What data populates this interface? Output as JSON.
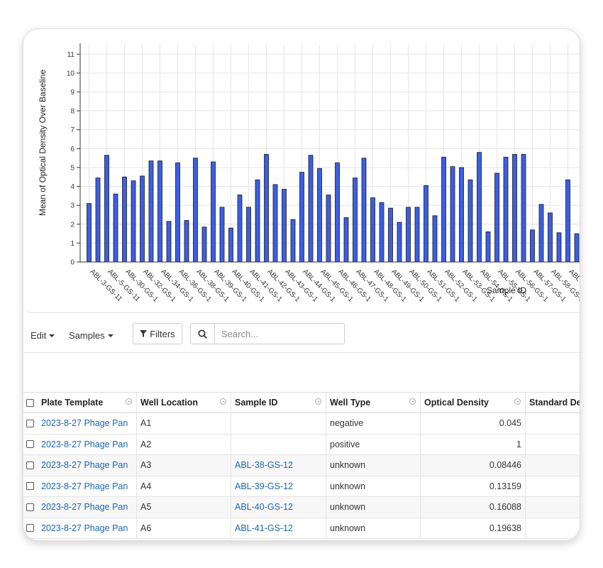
{
  "chart_data": {
    "type": "bar",
    "ylabel": "Mean of Optical Density Over Baseline",
    "xlabel": "Sample ID",
    "ylim": [
      0,
      11.5
    ],
    "yticks": [
      "0",
      "1",
      "2",
      "3",
      "4",
      "5",
      "6",
      "7",
      "8",
      "9",
      "10",
      "11"
    ],
    "grid": true,
    "bar_color": "#3b5ee8",
    "tick_labels": [
      "ABL-3-GS-11",
      "ABL-5-GS-11",
      "ABL-30-GS-1",
      "ABL-32-GS-1",
      "ABL-34-GS-1",
      "ABL-36-GS-1",
      "ABL-38-GS-1",
      "ABL-39-GS-1",
      "ABL-40-GS-1",
      "ABL-41-GS-1",
      "ABL-42-GS-1",
      "ABL-43-GS-1",
      "ABL-44-GS-1",
      "ABL-45-GS-1",
      "ABL-46-GS-1",
      "ABL-47-GS-1",
      "ABL-48-GS-1",
      "ABL-49-GS-1",
      "ABL-50-GS-1",
      "ABL-51-GS-1",
      "ABL-52-GS-1",
      "ABL-53-GS-1",
      "ABL-54-GS-1",
      "ABL-55-GS-1",
      "ABL-56-GS-1",
      "ABL-57-GS-1",
      "ABL-58-GS-1",
      "ABL-"
    ],
    "values": [
      3.1,
      4.45,
      5.65,
      3.6,
      4.5,
      4.3,
      4.55,
      5.35,
      5.35,
      2.15,
      5.25,
      2.2,
      5.5,
      1.85,
      5.3,
      2.9,
      1.8,
      3.55,
      2.9,
      4.35,
      5.7,
      4.1,
      3.85,
      2.25,
      4.75,
      5.65,
      4.95,
      3.55,
      5.25,
      2.35,
      4.45,
      5.5,
      3.4,
      3.15,
      2.85,
      2.1,
      2.9,
      2.9,
      4.05,
      2.45,
      5.55,
      5.05,
      5.0,
      4.35,
      5.8,
      1.6,
      4.7,
      5.55,
      5.7,
      5.7,
      1.7,
      3.05,
      2.6,
      1.55,
      4.35,
      1.5
    ]
  },
  "toolbar": {
    "edit_label": "Edit",
    "samples_label": "Samples",
    "filters_label": "Filters",
    "search_placeholder": "Search..."
  },
  "table": {
    "headers": {
      "plate_template": "Plate Template",
      "well_location": "Well Location",
      "sample_id": "Sample ID",
      "well_type": "Well Type",
      "optical_density": "Optical Density",
      "standard_dev": "Standard Dev"
    },
    "rows": [
      {
        "plate_template": "2023-8-27 Phage Pan",
        "well_location": "A1",
        "sample_id": "",
        "well_type": "negative",
        "optical_density": "0.045",
        "standard_dev": ""
      },
      {
        "plate_template": "2023-8-27 Phage Pan",
        "well_location": "A2",
        "sample_id": "",
        "well_type": "positive",
        "optical_density": "1",
        "standard_dev": ""
      },
      {
        "plate_template": "2023-8-27 Phage Pan",
        "well_location": "A3",
        "sample_id": "ABL-38-GS-12",
        "well_type": "unknown",
        "optical_density": "0.08446",
        "standard_dev": ""
      },
      {
        "plate_template": "2023-8-27 Phage Pan",
        "well_location": "A4",
        "sample_id": "ABL-39-GS-12",
        "well_type": "unknown",
        "optical_density": "0.13159",
        "standard_dev": ""
      },
      {
        "plate_template": "2023-8-27 Phage Pan",
        "well_location": "A5",
        "sample_id": "ABL-40-GS-12",
        "well_type": "unknown",
        "optical_density": "0.16088",
        "standard_dev": ""
      },
      {
        "plate_template": "2023-8-27 Phage Pan",
        "well_location": "A6",
        "sample_id": "ABL-41-GS-12",
        "well_type": "unknown",
        "optical_density": "0.19638",
        "standard_dev": ""
      }
    ]
  }
}
